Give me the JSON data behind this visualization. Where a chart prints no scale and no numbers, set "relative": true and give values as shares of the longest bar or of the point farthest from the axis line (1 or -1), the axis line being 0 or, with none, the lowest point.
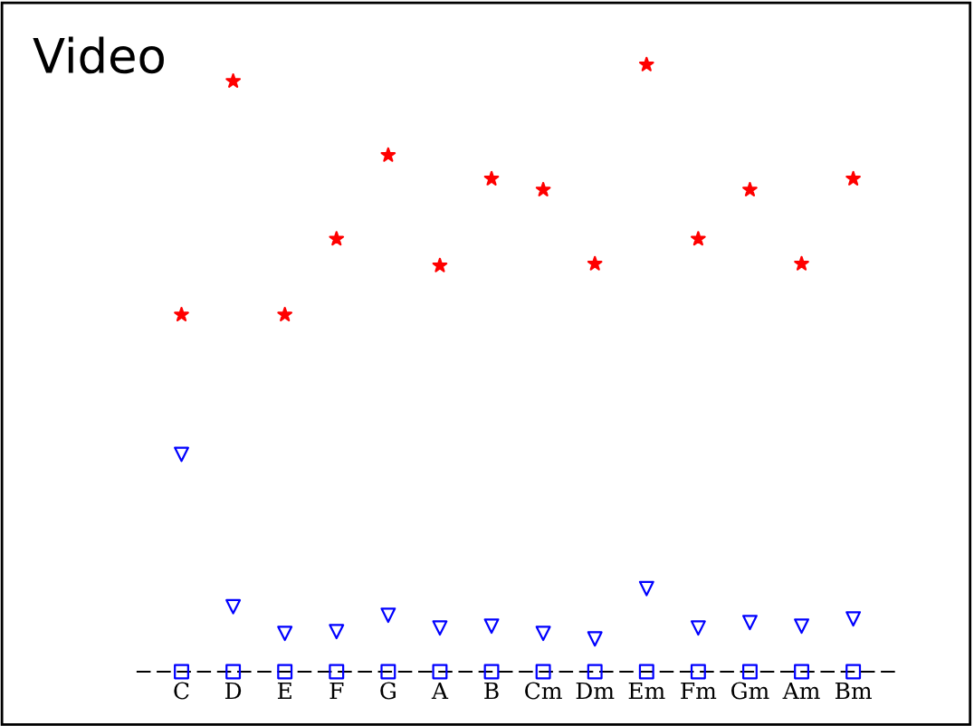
{
  "chart_data": {
    "type": "scatter",
    "title": "Video",
    "relative": true,
    "categories": [
      "C",
      "D",
      "E",
      "F",
      "G",
      "A",
      "B",
      "Cm",
      "Dm",
      "Em",
      "Fm",
      "Gm",
      "Am",
      "Bm"
    ],
    "series": [
      {
        "color": "#ff0000",
        "marker": "star",
        "values": [
          0.588,
          0.973,
          0.588,
          0.713,
          0.851,
          0.669,
          0.812,
          0.794,
          0.672,
          1,
          0.713,
          0.794,
          0.672,
          0.812
        ]
      },
      {
        "color": "#0000ff",
        "marker": "triangle",
        "values": [
          0.358,
          0.107,
          0.063,
          0.066,
          0.093,
          0.072,
          0.075,
          0.063,
          0.054,
          0.137,
          0.072,
          0.081,
          0.075,
          0.087
        ]
      },
      {
        "color": "#0000ff",
        "marker": "square",
        "values": [
          0,
          0,
          0,
          0,
          0,
          0,
          0,
          0,
          0,
          0,
          0,
          0,
          0,
          0
        ]
      }
    ],
    "grid": false,
    "legend": false
  }
}
